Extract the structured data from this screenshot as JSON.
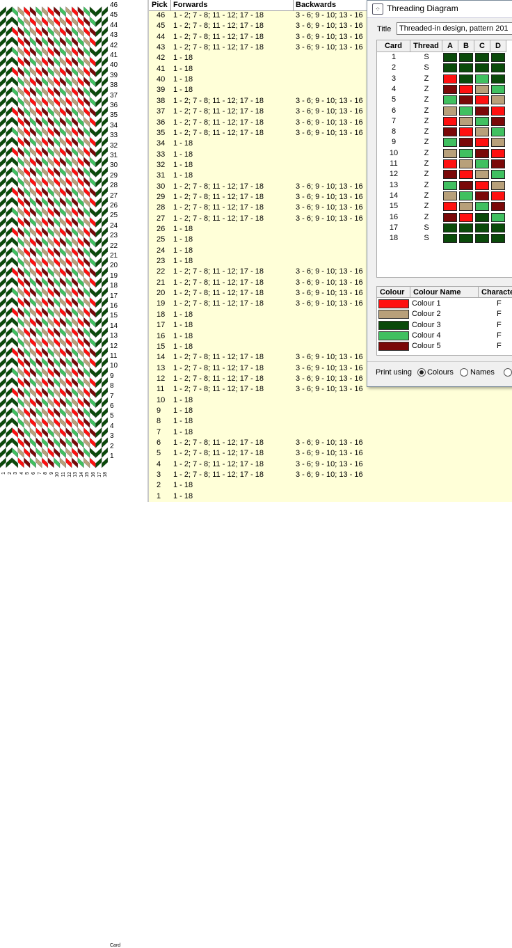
{
  "pattern": {
    "row_numbers": [
      46,
      45,
      44,
      43,
      42,
      41,
      40,
      39,
      38,
      37,
      36,
      35,
      34,
      33,
      32,
      31,
      30,
      29,
      28,
      27,
      26,
      25,
      24,
      23,
      22,
      21,
      20,
      19,
      18,
      17,
      16,
      15,
      14,
      13,
      12,
      11,
      10,
      9,
      8,
      7,
      6,
      5,
      4,
      3,
      2,
      1
    ],
    "card_numbers": [
      "1",
      "2",
      "3",
      "4",
      "5",
      "6",
      "7",
      "8",
      "9",
      "10",
      "11",
      "12",
      "13",
      "14",
      "15",
      "16",
      "17",
      "18"
    ],
    "card_axis_label": "Card"
  },
  "table": {
    "headers": {
      "pick": "Pick",
      "forwards": "Forwards",
      "backwards": "Backwards"
    },
    "rows": [
      {
        "pick": "46",
        "forwards": "1 - 2; 7 - 8; 11 - 12; 17 - 18",
        "backwards": "3 - 6; 9 - 10; 13 - 16"
      },
      {
        "pick": "45",
        "forwards": "1 - 2; 7 - 8; 11 - 12; 17 - 18",
        "backwards": "3 - 6; 9 - 10; 13 - 16"
      },
      {
        "pick": "44",
        "forwards": "1 - 2; 7 - 8; 11 - 12; 17 - 18",
        "backwards": "3 - 6; 9 - 10; 13 - 16"
      },
      {
        "pick": "43",
        "forwards": "1 - 2; 7 - 8; 11 - 12; 17 - 18",
        "backwards": "3 - 6; 9 - 10; 13 - 16"
      },
      {
        "pick": "42",
        "forwards": "1 - 18",
        "backwards": ""
      },
      {
        "pick": "41",
        "forwards": "1 - 18",
        "backwards": ""
      },
      {
        "pick": "40",
        "forwards": "1 - 18",
        "backwards": ""
      },
      {
        "pick": "39",
        "forwards": "1 - 18",
        "backwards": ""
      },
      {
        "pick": "38",
        "forwards": "1 - 2; 7 - 8; 11 - 12; 17 - 18",
        "backwards": "3 - 6; 9 - 10; 13 - 16"
      },
      {
        "pick": "37",
        "forwards": "1 - 2; 7 - 8; 11 - 12; 17 - 18",
        "backwards": "3 - 6; 9 - 10; 13 - 16"
      },
      {
        "pick": "36",
        "forwards": "1 - 2; 7 - 8; 11 - 12; 17 - 18",
        "backwards": "3 - 6; 9 - 10; 13 - 16"
      },
      {
        "pick": "35",
        "forwards": "1 - 2; 7 - 8; 11 - 12; 17 - 18",
        "backwards": "3 - 6; 9 - 10; 13 - 16"
      },
      {
        "pick": "34",
        "forwards": "1 - 18",
        "backwards": ""
      },
      {
        "pick": "33",
        "forwards": "1 - 18",
        "backwards": ""
      },
      {
        "pick": "32",
        "forwards": "1 - 18",
        "backwards": ""
      },
      {
        "pick": "31",
        "forwards": "1 - 18",
        "backwards": ""
      },
      {
        "pick": "30",
        "forwards": "1 - 2; 7 - 8; 11 - 12; 17 - 18",
        "backwards": "3 - 6; 9 - 10; 13 - 16"
      },
      {
        "pick": "29",
        "forwards": "1 - 2; 7 - 8; 11 - 12; 17 - 18",
        "backwards": "3 - 6; 9 - 10; 13 - 16"
      },
      {
        "pick": "28",
        "forwards": "1 - 2; 7 - 8; 11 - 12; 17 - 18",
        "backwards": "3 - 6; 9 - 10; 13 - 16"
      },
      {
        "pick": "27",
        "forwards": "1 - 2; 7 - 8; 11 - 12; 17 - 18",
        "backwards": "3 - 6; 9 - 10; 13 - 16"
      },
      {
        "pick": "26",
        "forwards": "1 - 18",
        "backwards": ""
      },
      {
        "pick": "25",
        "forwards": "1 - 18",
        "backwards": ""
      },
      {
        "pick": "24",
        "forwards": "1 - 18",
        "backwards": ""
      },
      {
        "pick": "23",
        "forwards": "1 - 18",
        "backwards": ""
      },
      {
        "pick": "22",
        "forwards": "1 - 2; 7 - 8; 11 - 12; 17 - 18",
        "backwards": "3 - 6; 9 - 10; 13 - 16"
      },
      {
        "pick": "21",
        "forwards": "1 - 2; 7 - 8; 11 - 12; 17 - 18",
        "backwards": "3 - 6; 9 - 10; 13 - 16"
      },
      {
        "pick": "20",
        "forwards": "1 - 2; 7 - 8; 11 - 12; 17 - 18",
        "backwards": "3 - 6; 9 - 10; 13 - 16"
      },
      {
        "pick": "19",
        "forwards": "1 - 2; 7 - 8; 11 - 12; 17 - 18",
        "backwards": "3 - 6; 9 - 10; 13 - 16"
      },
      {
        "pick": "18",
        "forwards": "1 - 18",
        "backwards": ""
      },
      {
        "pick": "17",
        "forwards": "1 - 18",
        "backwards": ""
      },
      {
        "pick": "16",
        "forwards": "1 - 18",
        "backwards": ""
      },
      {
        "pick": "15",
        "forwards": "1 - 18",
        "backwards": ""
      },
      {
        "pick": "14",
        "forwards": "1 - 2; 7 - 8; 11 - 12; 17 - 18",
        "backwards": "3 - 6; 9 - 10; 13 - 16"
      },
      {
        "pick": "13",
        "forwards": "1 - 2; 7 - 8; 11 - 12; 17 - 18",
        "backwards": "3 - 6; 9 - 10; 13 - 16"
      },
      {
        "pick": "12",
        "forwards": "1 - 2; 7 - 8; 11 - 12; 17 - 18",
        "backwards": "3 - 6; 9 - 10; 13 - 16"
      },
      {
        "pick": "11",
        "forwards": "1 - 2; 7 - 8; 11 - 12; 17 - 18",
        "backwards": "3 - 6; 9 - 10; 13 - 16"
      },
      {
        "pick": "10",
        "forwards": "1 - 18",
        "backwards": ""
      },
      {
        "pick": "9",
        "forwards": "1 - 18",
        "backwards": ""
      },
      {
        "pick": "8",
        "forwards": "1 - 18",
        "backwards": ""
      },
      {
        "pick": "7",
        "forwards": "1 - 18",
        "backwards": ""
      },
      {
        "pick": "6",
        "forwards": "1 - 2; 7 - 8; 11 - 12; 17 - 18",
        "backwards": "3 - 6; 9 - 10; 13 - 16"
      },
      {
        "pick": "5",
        "forwards": "1 - 2; 7 - 8; 11 - 12; 17 - 18",
        "backwards": "3 - 6; 9 - 10; 13 - 16"
      },
      {
        "pick": "4",
        "forwards": "1 - 2; 7 - 8; 11 - 12; 17 - 18",
        "backwards": "3 - 6; 9 - 10; 13 - 16"
      },
      {
        "pick": "3",
        "forwards": "1 - 2; 7 - 8; 11 - 12; 17 - 18",
        "backwards": "3 - 6; 9 - 10; 13 - 16"
      },
      {
        "pick": "2",
        "forwards": "1 - 18",
        "backwards": ""
      },
      {
        "pick": "1",
        "forwards": "1 - 18",
        "backwards": ""
      }
    ]
  },
  "dialog": {
    "window_title": "Threading Diagram",
    "title_label": "Title",
    "title_value": "Threaded-in design, pattern 201",
    "card_table": {
      "headers": [
        "Card",
        "Thread",
        "A",
        "B",
        "C",
        "D"
      ],
      "rows": [
        {
          "card": "1",
          "thread": "S",
          "holes": [
            3,
            3,
            3,
            3
          ]
        },
        {
          "card": "2",
          "thread": "S",
          "holes": [
            3,
            3,
            3,
            3
          ]
        },
        {
          "card": "3",
          "thread": "Z",
          "holes": [
            1,
            3,
            4,
            3
          ]
        },
        {
          "card": "4",
          "thread": "Z",
          "holes": [
            5,
            1,
            2,
            4
          ]
        },
        {
          "card": "5",
          "thread": "Z",
          "holes": [
            4,
            5,
            1,
            2
          ]
        },
        {
          "card": "6",
          "thread": "Z",
          "holes": [
            2,
            4,
            5,
            1
          ]
        },
        {
          "card": "7",
          "thread": "Z",
          "holes": [
            1,
            2,
            4,
            5
          ]
        },
        {
          "card": "8",
          "thread": "Z",
          "holes": [
            5,
            1,
            2,
            4
          ]
        },
        {
          "card": "9",
          "thread": "Z",
          "holes": [
            4,
            5,
            1,
            2
          ]
        },
        {
          "card": "10",
          "thread": "Z",
          "holes": [
            2,
            4,
            5,
            1
          ]
        },
        {
          "card": "11",
          "thread": "Z",
          "holes": [
            1,
            2,
            4,
            5
          ]
        },
        {
          "card": "12",
          "thread": "Z",
          "holes": [
            5,
            1,
            2,
            4
          ]
        },
        {
          "card": "13",
          "thread": "Z",
          "holes": [
            4,
            5,
            1,
            2
          ]
        },
        {
          "card": "14",
          "thread": "Z",
          "holes": [
            2,
            4,
            5,
            1
          ]
        },
        {
          "card": "15",
          "thread": "Z",
          "holes": [
            1,
            2,
            4,
            5
          ]
        },
        {
          "card": "16",
          "thread": "Z",
          "holes": [
            5,
            1,
            3,
            4
          ]
        },
        {
          "card": "17",
          "thread": "S",
          "holes": [
            3,
            3,
            3,
            3
          ]
        },
        {
          "card": "18",
          "thread": "S",
          "holes": [
            3,
            3,
            3,
            3
          ]
        }
      ]
    },
    "colour_table": {
      "headers": [
        "Colour",
        "Colour Name",
        "Characte"
      ],
      "rows": [
        {
          "id": 1,
          "name": "Colour 1",
          "hex": "#ff1010",
          "char": "F"
        },
        {
          "id": 2,
          "name": "Colour 2",
          "hex": "#b8a07a",
          "char": "F"
        },
        {
          "id": 3,
          "name": "Colour 3",
          "hex": "#0a4a0a",
          "char": "F"
        },
        {
          "id": 4,
          "name": "Colour 4",
          "hex": "#40c060",
          "char": "F"
        },
        {
          "id": 5,
          "name": "Colour 5",
          "hex": "#7a0808",
          "char": "F"
        }
      ]
    },
    "print_using_label": "Print using",
    "print_options": [
      {
        "label": "Colours",
        "selected": true
      },
      {
        "label": "Names",
        "selected": false
      },
      {
        "label": "",
        "selected": false
      }
    ]
  }
}
